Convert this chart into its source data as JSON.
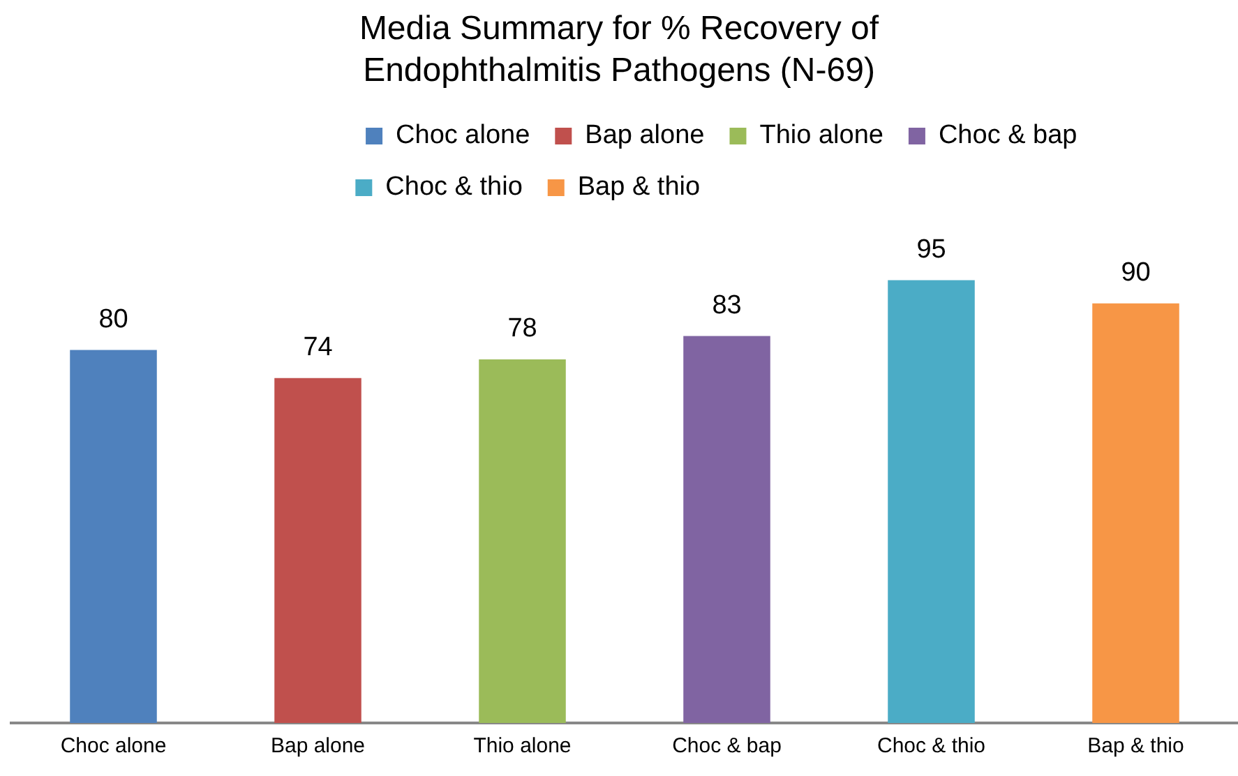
{
  "chart_data": {
    "type": "bar",
    "title": "Media Summary for % Recovery of Endophthalmitis Pathogens (N-69)",
    "categories": [
      "Choc alone",
      "Bap alone",
      "Thio alone",
      "Choc & bap",
      "Choc & thio",
      "Bap & thio"
    ],
    "series": [
      {
        "name": "Choc alone",
        "color": "#4f81bd",
        "values": [
          80,
          null,
          null,
          null,
          null,
          null
        ]
      },
      {
        "name": "Bap alone",
        "color": "#c0504d",
        "values": [
          null,
          74,
          null,
          null,
          null,
          null
        ]
      },
      {
        "name": "Thio alone",
        "color": "#9bbb59",
        "values": [
          null,
          null,
          78,
          null,
          null,
          null
        ]
      },
      {
        "name": "Choc & bap",
        "color": "#8064a2",
        "values": [
          null,
          null,
          null,
          83,
          null,
          null
        ]
      },
      {
        "name": "Choc & thio",
        "color": "#4bacc6",
        "values": [
          null,
          null,
          null,
          null,
          95,
          null
        ]
      },
      {
        "name": "Bap & thio",
        "color": "#f79646",
        "values": [
          null,
          null,
          null,
          null,
          null,
          90
        ]
      }
    ],
    "data_labels": true,
    "grid": false,
    "legend": "top"
  }
}
